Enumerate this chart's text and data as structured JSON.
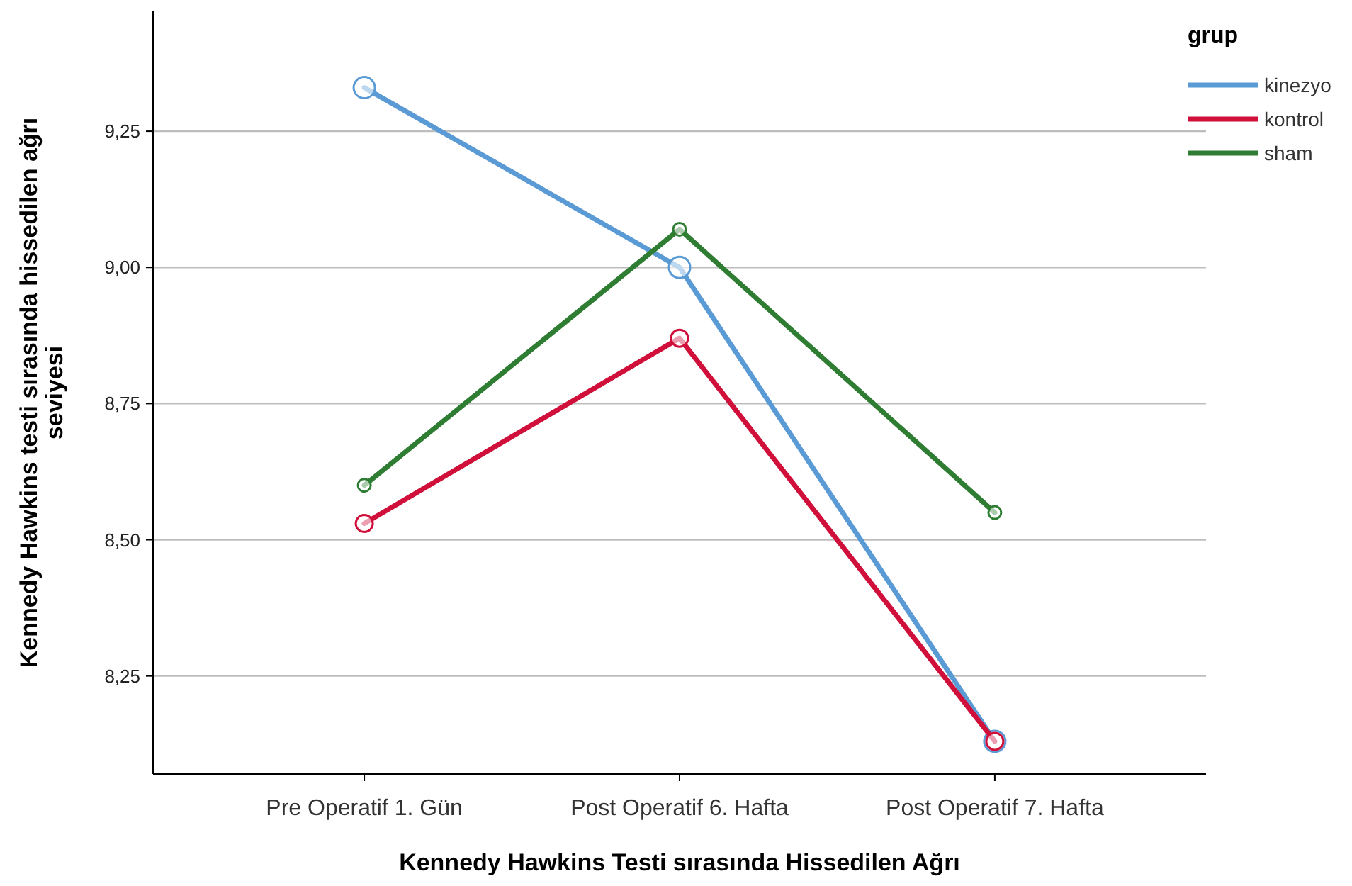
{
  "chart_data": {
    "type": "line",
    "xlabel": "Kennedy Hawkins Testi sırasında Hissedilen Ağrı",
    "ylabel": "Kennedy Hawkins testi sırasında hissedilen ağrı seviyesi",
    "legend_title": "grup",
    "categories": [
      "Pre Operatif 1. Gün",
      "Post Operatif 6. Hafta",
      "Post Operatif 7. Hafta"
    ],
    "series": [
      {
        "name": "kinezyo",
        "color": "#5b9bd5",
        "values": [
          9.33,
          9.0,
          8.13
        ]
      },
      {
        "name": "kontrol",
        "color": "#d0103a",
        "values": [
          8.53,
          8.87,
          8.13
        ]
      },
      {
        "name": "sham",
        "color": "#2e7d32",
        "values": [
          8.6,
          9.07,
          8.55
        ]
      }
    ],
    "ylim": [
      8.07,
      9.47
    ],
    "yticks": [
      {
        "value": 8.25,
        "label": "8,25"
      },
      {
        "value": 8.5,
        "label": "8,50"
      },
      {
        "value": 8.75,
        "label": "8,75"
      },
      {
        "value": 9.0,
        "label": "9,00"
      },
      {
        "value": 9.25,
        "label": "9,25"
      }
    ],
    "grid": "y",
    "legend": "top right",
    "marker": "circle",
    "line_style": "solid"
  }
}
